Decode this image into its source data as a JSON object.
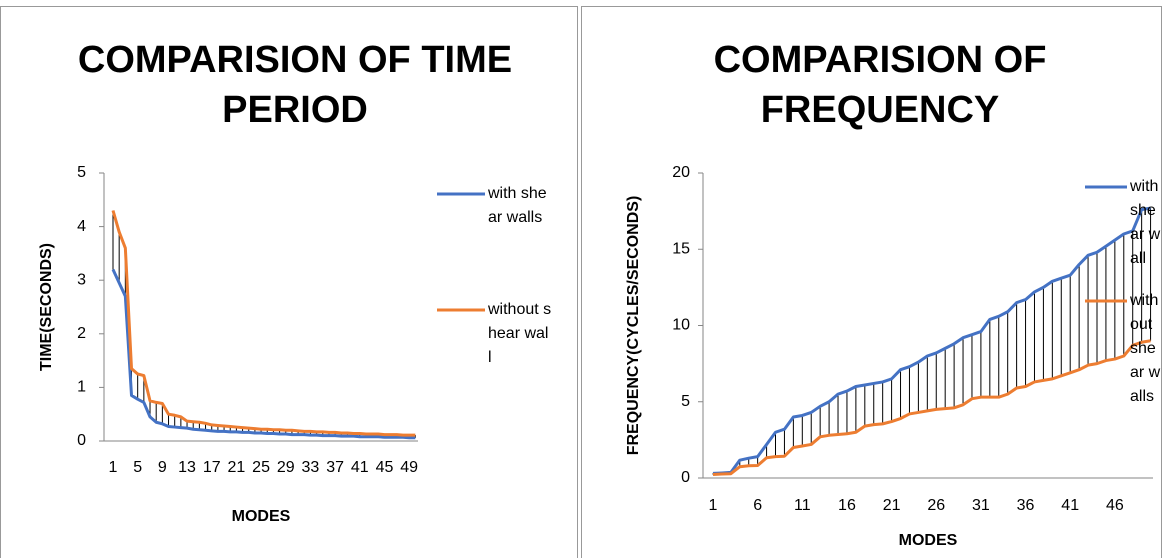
{
  "chart_data": [
    {
      "type": "line",
      "title": "COMPARISION OF TIME PERIOD",
      "xlabel": "MODES",
      "ylabel": "TIME(SECONDS)",
      "categories": [
        1,
        null,
        null,
        null,
        5,
        null,
        null,
        null,
        9,
        null,
        null,
        null,
        13,
        null,
        null,
        null,
        17,
        null,
        null,
        null,
        21,
        null,
        null,
        null,
        25,
        null,
        null,
        null,
        29,
        null,
        null,
        null,
        33,
        null,
        null,
        null,
        37,
        null,
        null,
        null,
        41,
        null,
        null,
        null,
        45,
        null,
        null,
        null,
        49,
        null
      ],
      "series": [
        {
          "name": "with shear walls",
          "color": "#4472c4",
          "values": [
            3.2,
            2.95,
            2.7,
            0.85,
            0.78,
            0.72,
            0.45,
            0.35,
            0.32,
            0.27,
            0.26,
            0.25,
            0.24,
            0.22,
            0.21,
            0.2,
            0.19,
            0.18,
            0.18,
            0.17,
            0.17,
            0.16,
            0.16,
            0.15,
            0.15,
            0.14,
            0.14,
            0.13,
            0.13,
            0.12,
            0.12,
            0.12,
            0.11,
            0.11,
            0.1,
            0.1,
            0.1,
            0.09,
            0.09,
            0.09,
            0.08,
            0.08,
            0.08,
            0.08,
            0.07,
            0.07,
            0.07,
            0.07,
            0.06,
            0.06
          ]
        },
        {
          "name": "without shear wall",
          "color": "#ed7d31",
          "values": [
            4.3,
            3.9,
            3.6,
            1.35,
            1.25,
            1.22,
            0.75,
            0.72,
            0.7,
            0.5,
            0.48,
            0.45,
            0.37,
            0.36,
            0.35,
            0.33,
            0.3,
            0.29,
            0.28,
            0.27,
            0.26,
            0.25,
            0.24,
            0.23,
            0.22,
            0.22,
            0.21,
            0.21,
            0.2,
            0.2,
            0.19,
            0.18,
            0.18,
            0.17,
            0.17,
            0.16,
            0.16,
            0.15,
            0.15,
            0.14,
            0.14,
            0.13,
            0.13,
            0.13,
            0.12,
            0.12,
            0.12,
            0.11,
            0.11,
            0.11
          ]
        }
      ],
      "ylim": [
        0,
        5
      ],
      "yticks": [
        0,
        1,
        2,
        3,
        4,
        5
      ],
      "drop_lines": true,
      "legend": "right"
    },
    {
      "type": "line",
      "title": "COMPARISION OF FREQUENCY",
      "xlabel": "MODES",
      "ylabel": "FREQUENCY(CYCLES/SECONDS)",
      "categories": [
        1,
        null,
        null,
        null,
        null,
        6,
        null,
        null,
        null,
        null,
        11,
        null,
        null,
        null,
        null,
        16,
        null,
        null,
        null,
        null,
        21,
        null,
        null,
        null,
        null,
        26,
        null,
        null,
        null,
        null,
        31,
        null,
        null,
        null,
        null,
        36,
        null,
        null,
        null,
        null,
        41,
        null,
        null,
        null,
        null,
        46,
        null,
        null,
        null,
        null
      ],
      "series": [
        {
          "name": "with shear wall",
          "color": "#4472c4",
          "values": [
            0.3,
            0.33,
            0.37,
            1.17,
            1.3,
            1.4,
            2.2,
            3.0,
            3.2,
            4.0,
            4.1,
            4.3,
            4.7,
            5.0,
            5.5,
            5.7,
            6.0,
            6.1,
            6.2,
            6.3,
            6.5,
            7.1,
            7.3,
            7.6,
            8.0,
            8.2,
            8.5,
            8.8,
            9.2,
            9.4,
            9.6,
            10.4,
            10.6,
            10.9,
            11.5,
            11.7,
            12.2,
            12.5,
            12.9,
            13.1,
            13.3,
            14.0,
            14.6,
            14.8,
            15.2,
            15.6,
            16.0,
            16.2,
            17.6,
            17.7
          ]
        },
        {
          "name": "without shear walls",
          "color": "#ed7d31",
          "values": [
            0.23,
            0.26,
            0.28,
            0.74,
            0.8,
            0.82,
            1.33,
            1.4,
            1.43,
            2.0,
            2.1,
            2.2,
            2.7,
            2.8,
            2.85,
            2.9,
            3.0,
            3.4,
            3.5,
            3.55,
            3.7,
            3.9,
            4.2,
            4.3,
            4.4,
            4.5,
            4.55,
            4.6,
            4.8,
            5.2,
            5.3,
            5.3,
            5.3,
            5.5,
            5.9,
            6.0,
            6.3,
            6.4,
            6.5,
            6.7,
            6.9,
            7.1,
            7.4,
            7.5,
            7.7,
            7.8,
            8.0,
            8.7,
            8.9,
            9.0
          ]
        }
      ],
      "ylim": [
        0,
        20
      ],
      "yticks": [
        0,
        5,
        10,
        15,
        20
      ],
      "drop_lines": true,
      "legend": "right"
    }
  ]
}
